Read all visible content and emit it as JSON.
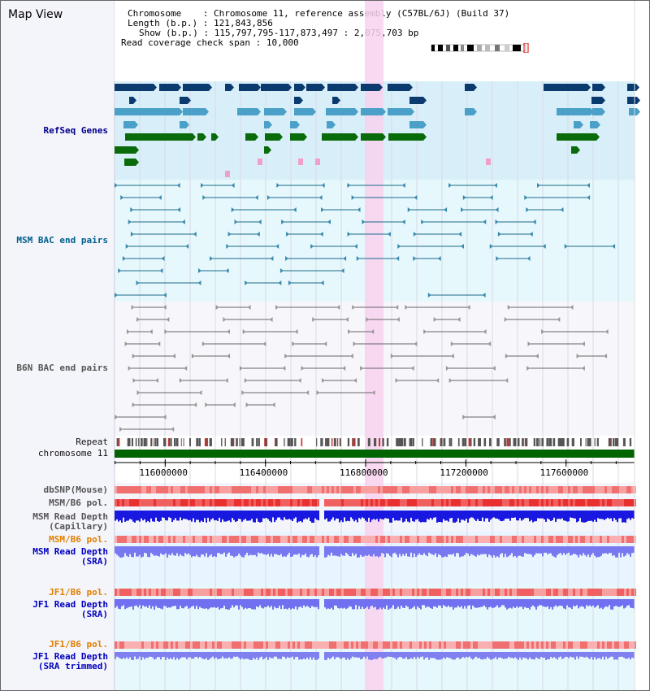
{
  "title": "Map View",
  "info": {
    "chromosome_key": "Chromosome",
    "chromosome_val": "Chromosome 11, reference assembly (C57BL/6J) (Build 37)",
    "length_key": "Length (b.p.)",
    "length_val": "121,843,856",
    "show_key": "Show (b.p.)",
    "show_val": "115,797,795-117,873,497 : 2,075,703 bp",
    "coverage_key": "Read coverage check span",
    "coverage_val": "10,000"
  },
  "tracks": {
    "refseq": "RefSeq Genes",
    "msm_bac": "MSM BAC end pairs",
    "b6n_bac": "B6N BAC end pairs",
    "repeat": "Repeat",
    "chromosome": "chromosome 11",
    "dbsnp": "dbSNP(Mouse)",
    "msm_b6_pol_1": "MSM/B6 pol.",
    "msm_read_depth_cap": "MSM Read Depth\n(Capillary)",
    "msm_b6_pol_2": "MSM/B6 pol.",
    "msm_read_depth_sra": "MSM Read Depth\n(SRA)",
    "jf1_b6_pol_1": "JF1/B6 pol.",
    "jf1_read_depth_sra": "JF1 Read Depth\n(SRA)",
    "jf1_b6_pol_2": "JF1/B6 pol.",
    "jf1_read_depth_trim": "JF1 Read Depth\n(SRA trimmed)"
  },
  "axis": {
    "ticks": [
      "116000000",
      "116400000",
      "116800000",
      "117200000",
      "117600000"
    ],
    "range": [
      115797795,
      117873497
    ]
  },
  "colors": {
    "refseq_bg": "#d8effa",
    "msm_bg": "#e6f8fc",
    "b6n_bg": "#f7f7fb",
    "highlight": "#f8d2ee",
    "dark_navy": "#0a3a6e",
    "mid_blue": "#4aa0c8",
    "green": "#0a6b0a",
    "pink": "#f0a0c8",
    "chrom_green": "#006400"
  }
}
